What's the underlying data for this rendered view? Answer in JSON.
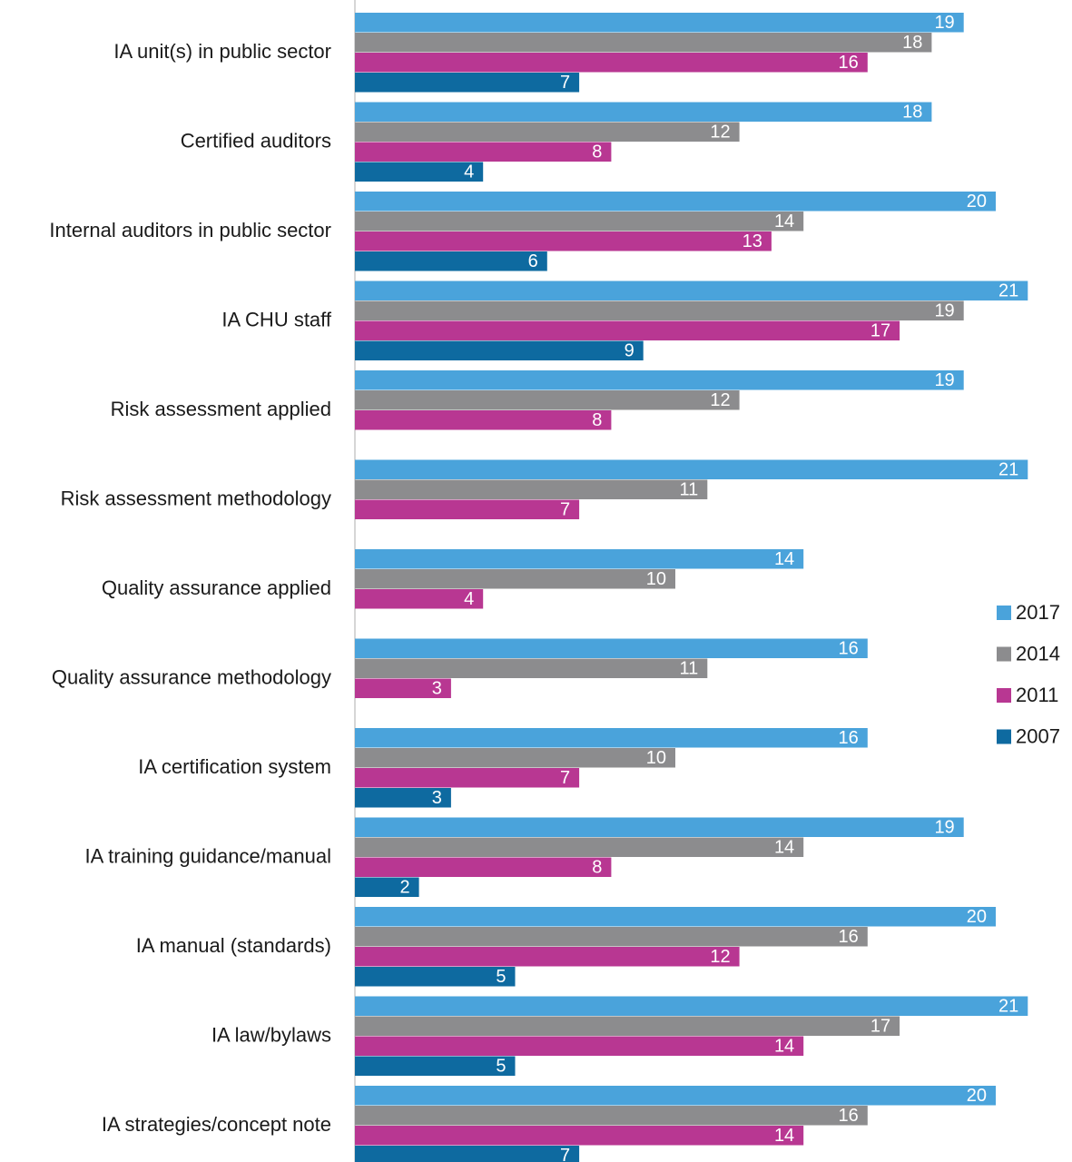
{
  "chart_data": {
    "type": "bar",
    "orientation": "horizontal",
    "title": "",
    "xlabel": "",
    "ylabel": "",
    "xlim": [
      0,
      21
    ],
    "grid": false,
    "legend_position": "right",
    "categories": [
      "IA unit(s) in public sector",
      "Certified auditors",
      "Internal auditors in public sector",
      "IA CHU staff",
      "Risk assessment applied",
      "Risk assessment methodology",
      "Quality assurance applied",
      "Quality assurance methodology",
      "IA certification system",
      "IA training guidance/manual",
      "IA manual (standards)",
      "IA law/bylaws",
      "IA strategies/concept note"
    ],
    "series": [
      {
        "name": "2017",
        "color": "#4aa3db",
        "values": [
          19,
          18,
          20,
          21,
          19,
          21,
          14,
          16,
          16,
          19,
          20,
          21,
          20
        ]
      },
      {
        "name": "2014",
        "color": "#8c8c8e",
        "values": [
          18,
          12,
          14,
          19,
          12,
          11,
          10,
          11,
          10,
          14,
          16,
          17,
          16
        ]
      },
      {
        "name": "2011",
        "color": "#b83792",
        "values": [
          16,
          8,
          13,
          17,
          8,
          7,
          4,
          3,
          7,
          8,
          12,
          14,
          14
        ]
      },
      {
        "name": "2007",
        "color": "#0e6aa0",
        "values": [
          7,
          4,
          6,
          9,
          null,
          null,
          null,
          null,
          3,
          2,
          5,
          5,
          7
        ]
      }
    ],
    "legend_order": [
      "2017",
      "2014",
      "2011",
      "2007"
    ]
  }
}
